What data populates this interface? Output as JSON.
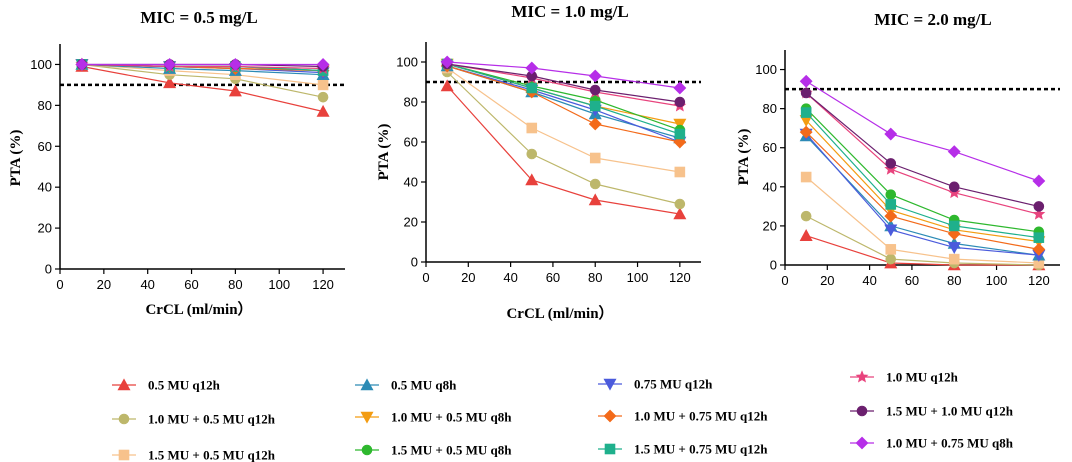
{
  "colors": {
    "0.5 MU q12h": "#e8413c",
    "1.0 MU + 0.5 MU q12h": "#bdb76b",
    "1.5 MU + 0.5 MU q12h": "#f7c28c",
    "0.5 MU q8h": "#2c8bb5",
    "1.0 MU + 0.5 MU q8h": "#f39c12",
    "1.5 MU + 0.5 MU q8h": "#2eb82e",
    "0.75 MU q12h": "#4b5bdc",
    "1.0 MU + 0.75 MU q12h": "#f36a1a",
    "1.5 MU + 0.75 MU q12h": "#1fb08c",
    "1.0 MU q12h": "#e8437d",
    "1.5 MU + 1.0 MU q12h": "#6b1f6e",
    "1.0 MU + 0.75 MU q8h": "#b62ee8"
  },
  "legend": [
    {
      "name": "0.5 MU q12h",
      "marker": "triangle-up"
    },
    {
      "name": "1.0 MU + 0.5 MU q12h",
      "marker": "circle"
    },
    {
      "name": "1.5 MU + 0.5 MU q12h",
      "marker": "square"
    },
    {
      "name": "0.5 MU q8h",
      "marker": "triangle-up"
    },
    {
      "name": "1.0 MU + 0.5 MU q8h",
      "marker": "triangle-down"
    },
    {
      "name": "1.5 MU + 0.5 MU q8h",
      "marker": "circle"
    },
    {
      "name": "0.75 MU q12h",
      "marker": "triangle-down"
    },
    {
      "name": "1.0 MU + 0.75 MU q12h",
      "marker": "diamond"
    },
    {
      "name": "1.5 MU + 0.75 MU q12h",
      "marker": "square"
    },
    {
      "name": "1.0 MU q12h",
      "marker": "star"
    },
    {
      "name": "1.5 MU + 1.0 MU q12h",
      "marker": "circle"
    },
    {
      "name": "1.0 MU + 0.75 MU q8h",
      "marker": "diamond"
    }
  ],
  "chart_data": [
    {
      "type": "line",
      "title": "MIC = 0.5 mg/L",
      "xlabel": "CrCL (ml/min）",
      "ylabel": "PTA (%)",
      "xlim": [
        0,
        130
      ],
      "ylim": [
        0,
        110
      ],
      "xticks": [
        0,
        20,
        40,
        60,
        80,
        100,
        120
      ],
      "yticks": [
        0,
        20,
        40,
        60,
        80,
        100
      ],
      "target_line": 90,
      "x": [
        10,
        50,
        80,
        120
      ],
      "series": [
        {
          "name": "0.5 MU q12h",
          "values": [
            99,
            91,
            87,
            77
          ]
        },
        {
          "name": "1.0 MU + 0.5 MU q12h",
          "values": [
            100,
            95,
            93,
            84
          ]
        },
        {
          "name": "1.5 MU + 0.5 MU q12h",
          "values": [
            100,
            97,
            95,
            90
          ]
        },
        {
          "name": "0.5 MU q8h",
          "values": [
            100,
            98,
            97,
            95
          ]
        },
        {
          "name": "1.0 MU + 0.5 MU q8h",
          "values": [
            100,
            99,
            98,
            97
          ]
        },
        {
          "name": "1.5 MU + 0.5 MU q8h",
          "values": [
            100,
            99,
            99,
            97
          ]
        },
        {
          "name": "0.75 MU q12h",
          "values": [
            100,
            99,
            98,
            96
          ]
        },
        {
          "name": "1.0 MU + 0.75 MU q12h",
          "values": [
            100,
            99,
            98,
            97
          ]
        },
        {
          "name": "1.5 MU + 0.75 MU q12h",
          "values": [
            100,
            99,
            99,
            97
          ]
        },
        {
          "name": "1.0 MU q12h",
          "values": [
            100,
            99,
            99,
            98
          ]
        },
        {
          "name": "1.5 MU + 1.0 MU q12h",
          "values": [
            100,
            100,
            100,
            99
          ]
        },
        {
          "name": "1.0 MU + 0.75 MU q8h",
          "values": [
            100,
            100,
            100,
            100
          ]
        }
      ]
    },
    {
      "type": "line",
      "title": "MIC = 1.0 mg/L",
      "xlabel": "CrCL (ml/min）",
      "ylabel": "PTA (%)",
      "xlim": [
        0,
        130
      ],
      "ylim": [
        0,
        110
      ],
      "xticks": [
        0,
        20,
        40,
        60,
        80,
        100,
        120
      ],
      "yticks": [
        0,
        20,
        40,
        60,
        80,
        100
      ],
      "target_line": 90,
      "x": [
        10,
        50,
        80,
        120
      ],
      "series": [
        {
          "name": "0.5 MU q12h",
          "values": [
            88,
            41,
            31,
            24
          ]
        },
        {
          "name": "1.0 MU + 0.5 MU q12h",
          "values": [
            95,
            54,
            39,
            29
          ]
        },
        {
          "name": "1.5 MU + 0.5 MU q12h",
          "values": [
            97,
            67,
            52,
            45
          ]
        },
        {
          "name": "0.5 MU q8h",
          "values": [
            98,
            85,
            74,
            62
          ]
        },
        {
          "name": "1.0 MU + 0.5 MU q8h",
          "values": [
            99,
            87,
            78,
            69
          ]
        },
        {
          "name": "1.5 MU + 0.5 MU q8h",
          "values": [
            99,
            88,
            81,
            66
          ]
        },
        {
          "name": "0.75 MU q12h",
          "values": [
            98,
            86,
            76,
            60
          ]
        },
        {
          "name": "1.0 MU + 0.75 MU q12h",
          "values": [
            98,
            85,
            69,
            60
          ]
        },
        {
          "name": "1.5 MU + 0.75 MU q12h",
          "values": [
            99,
            87,
            78,
            64
          ]
        },
        {
          "name": "1.0 MU q12h",
          "values": [
            99,
            92,
            85,
            78
          ]
        },
        {
          "name": "1.5 MU + 1.0 MU q12h",
          "values": [
            99,
            93,
            86,
            80
          ]
        },
        {
          "name": "1.0 MU + 0.75 MU q8h",
          "values": [
            100,
            97,
            93,
            87
          ]
        }
      ]
    },
    {
      "type": "line",
      "title": "MIC = 2.0 mg/L",
      "xlabel": "",
      "ylabel": "PTA (%)",
      "xlim": [
        0,
        130
      ],
      "ylim": [
        0,
        110
      ],
      "xticks": [
        0,
        20,
        40,
        60,
        80,
        100,
        120
      ],
      "yticks": [
        0,
        20,
        40,
        60,
        80,
        100
      ],
      "target_line": 90,
      "x": [
        10,
        50,
        80,
        120
      ],
      "series": [
        {
          "name": "0.5 MU q12h",
          "values": [
            15,
            1,
            0,
            0
          ]
        },
        {
          "name": "1.0 MU + 0.5 MU q12h",
          "values": [
            25,
            3,
            1,
            0
          ]
        },
        {
          "name": "1.5 MU + 0.5 MU q12h",
          "values": [
            45,
            8,
            3,
            1
          ]
        },
        {
          "name": "0.5 MU q8h",
          "values": [
            66,
            20,
            11,
            5
          ]
        },
        {
          "name": "1.0 MU + 0.5 MU q8h",
          "values": [
            74,
            28,
            18,
            12
          ]
        },
        {
          "name": "1.5 MU + 0.5 MU q8h",
          "values": [
            80,
            36,
            23,
            17
          ]
        },
        {
          "name": "0.75 MU q12h",
          "values": [
            67,
            18,
            9,
            5
          ]
        },
        {
          "name": "1.0 MU + 0.75 MU q12h",
          "values": [
            68,
            25,
            16,
            8
          ]
        },
        {
          "name": "1.5 MU + 0.75 MU q12h",
          "values": [
            78,
            31,
            20,
            14
          ]
        },
        {
          "name": "1.0 MU q12h",
          "values": [
            88,
            49,
            37,
            26
          ]
        },
        {
          "name": "1.5 MU + 1.0 MU q12h",
          "values": [
            88,
            52,
            40,
            30
          ]
        },
        {
          "name": "1.0 MU + 0.75 MU q8h",
          "values": [
            94,
            67,
            58,
            43
          ]
        }
      ]
    }
  ]
}
